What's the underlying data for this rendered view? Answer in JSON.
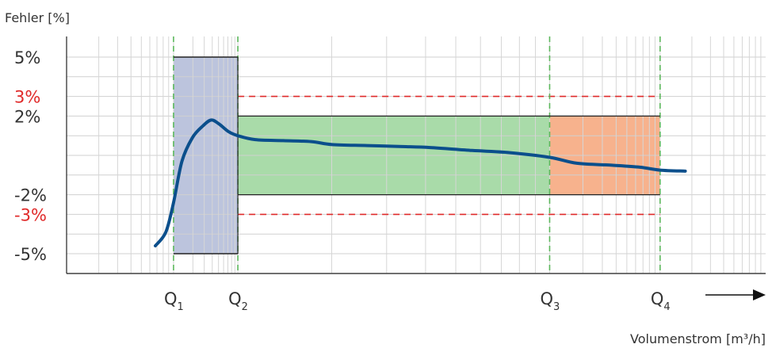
{
  "chart_data": {
    "type": "line",
    "title": "",
    "ylabel": "Fehler [%]",
    "xlabel": "Volumenstrom [m³/h]",
    "ylim": [
      -6,
      6
    ],
    "xlim": [
      0,
      1
    ],
    "grid": true,
    "y_ticks": [
      {
        "value": 5,
        "label": "5%",
        "color": "#333333"
      },
      {
        "value": 3,
        "label": "3%",
        "color": "#e02a2a"
      },
      {
        "value": 2,
        "label": "2%",
        "color": "#333333"
      },
      {
        "value": -2,
        "label": "-2%",
        "color": "#333333"
      },
      {
        "value": -3,
        "label": "-3%",
        "color": "#e02a2a"
      },
      {
        "value": -5,
        "label": "-5%",
        "color": "#333333"
      }
    ],
    "flow_points": [
      {
        "name": "Q",
        "sub": "1",
        "x": 0.153
      },
      {
        "name": "Q",
        "sub": "2",
        "x": 0.245
      },
      {
        "name": "Q",
        "sub": "3",
        "x": 0.691
      },
      {
        "name": "Q",
        "sub": "4",
        "x": 0.849
      }
    ],
    "error_zones": [
      {
        "x0": 0.153,
        "x1": 0.245,
        "y0": -5,
        "y1": 5,
        "color": "#bcc4dd"
      },
      {
        "x0": 0.245,
        "x1": 0.691,
        "y0": -2,
        "y1": 2,
        "color": "#a9dba9"
      },
      {
        "x0": 0.691,
        "x1": 0.849,
        "y0": -2,
        "y1": 2,
        "color": "#f7b28d"
      }
    ],
    "tolerance_lines": [
      {
        "y": 3,
        "x0": 0.245,
        "x1": 0.849,
        "color": "#e02a2a"
      },
      {
        "y": -3,
        "x0": 0.245,
        "x1": 0.849,
        "color": "#e02a2a"
      }
    ],
    "series": [
      {
        "color": "#0b4f8c",
        "points": [
          [
            0.127,
            -4.6
          ],
          [
            0.142,
            -3.9
          ],
          [
            0.153,
            -2.4
          ],
          [
            0.165,
            -0.3
          ],
          [
            0.18,
            0.9
          ],
          [
            0.195,
            1.5
          ],
          [
            0.207,
            1.8
          ],
          [
            0.218,
            1.6
          ],
          [
            0.232,
            1.2
          ],
          [
            0.245,
            1.0
          ],
          [
            0.27,
            0.8
          ],
          [
            0.31,
            0.75
          ],
          [
            0.35,
            0.7
          ],
          [
            0.38,
            0.55
          ],
          [
            0.43,
            0.5
          ],
          [
            0.48,
            0.45
          ],
          [
            0.52,
            0.4
          ],
          [
            0.58,
            0.25
          ],
          [
            0.63,
            0.15
          ],
          [
            0.691,
            -0.1
          ],
          [
            0.73,
            -0.4
          ],
          [
            0.78,
            -0.5
          ],
          [
            0.82,
            -0.6
          ],
          [
            0.849,
            -0.75
          ],
          [
            0.885,
            -0.8
          ]
        ]
      }
    ]
  }
}
